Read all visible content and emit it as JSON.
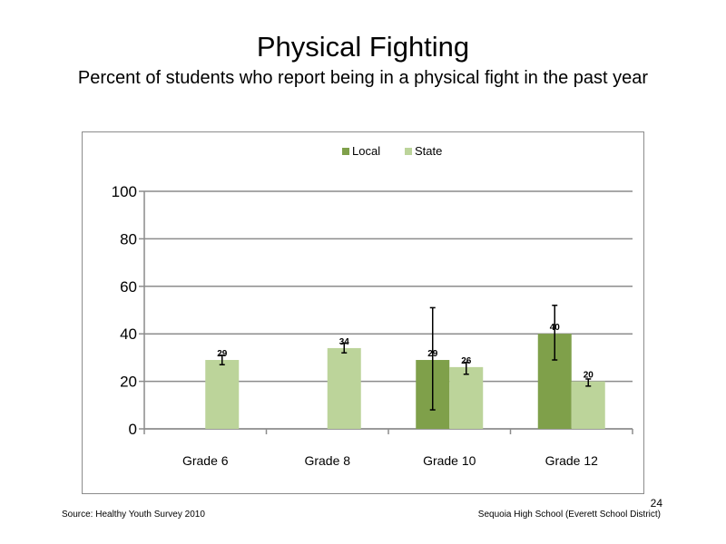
{
  "title": "Physical Fighting",
  "subtitle": "Percent of students who report being in a physical fight in the past year",
  "footer": {
    "source": "Source: Healthy Youth Survey 2010",
    "school": "Sequoia High School (Everett School District)",
    "page_number": "24"
  },
  "chart_data": {
    "type": "bar",
    "title": "",
    "xlabel": "",
    "ylabel": "",
    "ylim": [
      0,
      100
    ],
    "yticks": [
      0,
      20,
      40,
      60,
      80,
      100
    ],
    "grid": true,
    "legend_position": "top",
    "categories": [
      "Grade 6",
      "Grade 8",
      "Grade 10",
      "Grade 12"
    ],
    "series": [
      {
        "name": "Local",
        "color": "#7fa04a",
        "values": [
          null,
          null,
          29,
          40
        ],
        "labels": [
          "",
          "",
          "29",
          "40"
        ],
        "error_low": [
          null,
          null,
          8,
          29
        ],
        "error_high": [
          null,
          null,
          51,
          52
        ]
      },
      {
        "name": "State",
        "color": "#bcd49a",
        "values": [
          29,
          34,
          26,
          20
        ],
        "labels": [
          "29",
          "34",
          "26",
          "20"
        ],
        "error_low": [
          27,
          32,
          23,
          18
        ],
        "error_high": [
          31,
          36,
          28,
          21
        ]
      }
    ]
  }
}
